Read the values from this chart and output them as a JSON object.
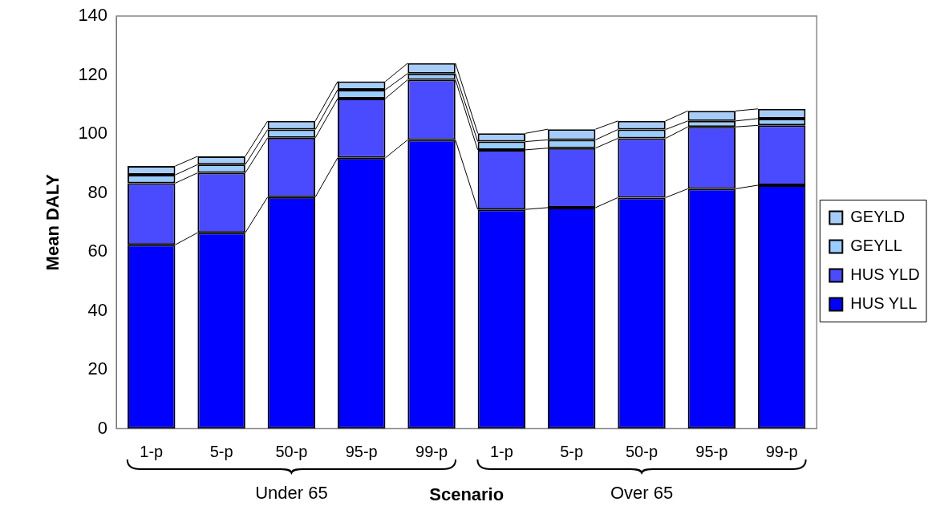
{
  "chart_data": {
    "type": "bar",
    "stacked": true,
    "xlabel": "Scenario",
    "ylabel": "Mean DALY",
    "categories": [
      "1-p",
      "5-p",
      "50-p",
      "95-p",
      "99-p",
      "1-p",
      "5-p",
      "50-p",
      "95-p",
      "99-p"
    ],
    "series": [
      {
        "name": "HUS YLL",
        "color": "#0000ff",
        "values": [
          62.4,
          66.5,
          78.6,
          91.9,
          98.0,
          74.4,
          75.0,
          78.4,
          81.4,
          82.6
        ]
      },
      {
        "name": "HUS YLD",
        "color": "#4a4aff",
        "values": [
          20.9,
          20.3,
          20.1,
          20.1,
          20.4,
          20.2,
          20.2,
          20.1,
          21.0,
          20.3
        ]
      },
      {
        "name": "GEYLL",
        "color": "#99ccff",
        "values": [
          2.8,
          2.8,
          2.8,
          3.0,
          2.1,
          2.8,
          2.8,
          3.0,
          2.0,
          2.3
        ]
      },
      {
        "name": "GEYLD",
        "color": "#a6cdfa",
        "values": [
          3.0,
          2.8,
          2.9,
          2.8,
          3.5,
          2.8,
          3.6,
          2.9,
          3.4,
          3.3
        ]
      }
    ],
    "ylim": [
      0,
      140
    ],
    "yticks": [
      0,
      20,
      40,
      60,
      80,
      100,
      120,
      140
    ],
    "grid": false,
    "legend": "right",
    "annotations": [
      "Under 65",
      "Over 65"
    ]
  }
}
